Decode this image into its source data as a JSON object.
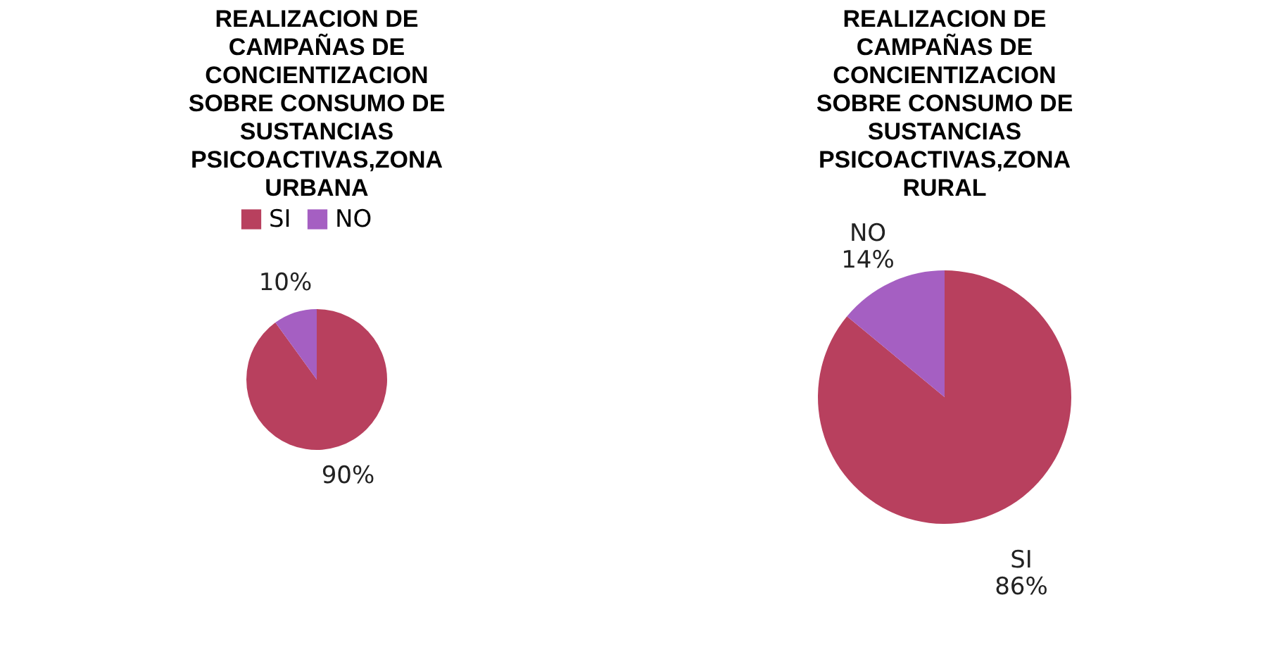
{
  "chart_data": [
    {
      "type": "pie",
      "title": "REALIZACION DE CAMPAÑAS DE CONCIENTIZACION SOBRE CONSUMO DE SUSTANCIAS PSICOACTIVAS,ZONA URBANA",
      "categories": [
        "SI",
        "NO"
      ],
      "values": [
        90,
        10
      ],
      "colors": [
        "#b8405e",
        "#a55fc2"
      ],
      "value_labels": [
        "90%",
        "10%"
      ],
      "legend": "top"
    },
    {
      "type": "pie",
      "title": "REALIZACION DE CAMPAÑAS DE CONCIENTIZACION SOBRE CONSUMO DE SUSTANCIAS PSICOACTIVAS,ZONA RURAL",
      "categories": [
        "SI",
        "NO"
      ],
      "values": [
        86,
        14
      ],
      "colors": [
        "#b8405e",
        "#a55fc2"
      ],
      "value_labels": [
        "86%",
        "14%"
      ]
    }
  ]
}
